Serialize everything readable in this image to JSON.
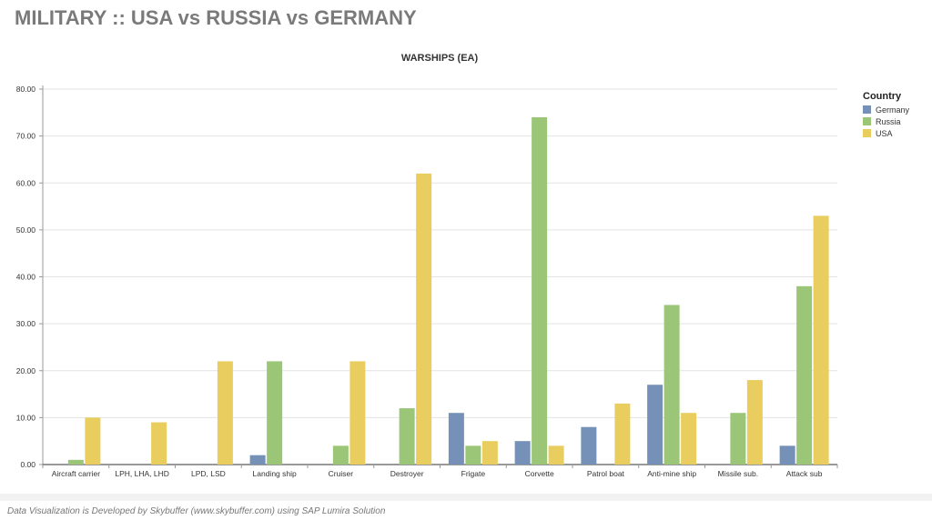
{
  "page": {
    "title": "MILITARY :: USA vs RUSSIA vs GERMANY",
    "footer": "Data Visualization is Developed by Skybuffer (www.skybuffer.com) using SAP Lumira Solution"
  },
  "chart_data": {
    "type": "bar",
    "title": "WARSHIPS (EA)",
    "xlabel": "",
    "ylabel": "",
    "ylim": [
      0,
      80
    ],
    "yticks": [
      "0.00",
      "10.00",
      "20.00",
      "30.00",
      "40.00",
      "50.00",
      "60.00",
      "70.00",
      "80.00"
    ],
    "grid": true,
    "legend": {
      "title": "Country",
      "position": "top-right"
    },
    "categories": [
      "Aircraft carrier",
      "LPH, LHA, LHD",
      "LPD, LSD",
      "Landing ship",
      "Cruiser",
      "Destroyer",
      "Frigate",
      "Corvette",
      "Patrol boat",
      "Anti-mine ship",
      "Missile sub.",
      "Attack sub"
    ],
    "series": [
      {
        "name": "Germany",
        "color": "#7591b8",
        "values": [
          0,
          0,
          0,
          2,
          0,
          0,
          11,
          5,
          8,
          17,
          0,
          4
        ]
      },
      {
        "name": "Russia",
        "color": "#9bc677",
        "values": [
          1,
          0,
          0,
          22,
          4,
          12,
          4,
          74,
          0,
          34,
          11,
          38
        ]
      },
      {
        "name": "USA",
        "color": "#eacd5f",
        "values": [
          10,
          9,
          22,
          0,
          22,
          62,
          5,
          4,
          13,
          11,
          18,
          53
        ]
      }
    ]
  }
}
